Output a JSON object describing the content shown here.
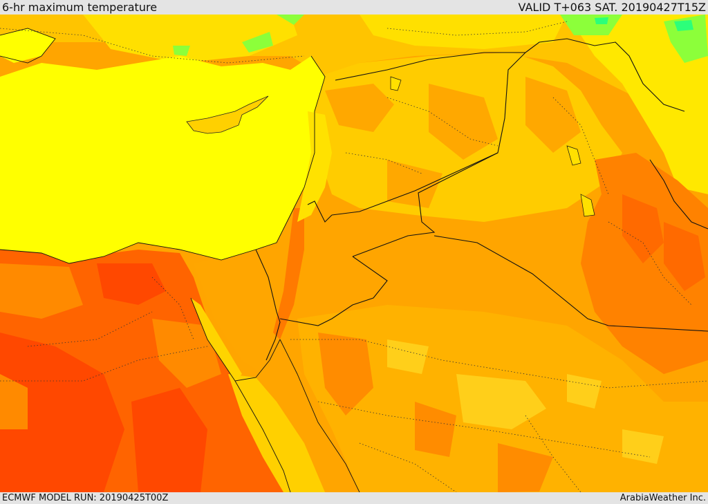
{
  "header": {
    "title": "6-hr maximum temperature",
    "valid": "VALID T+063 SAT. 20190427T15Z"
  },
  "footer": {
    "model_run": "ECMWF MODEL RUN: 20190425T00Z",
    "credit": "ArabiaWeather Inc."
  },
  "map": {
    "variable": "6-hr maximum temperature",
    "palette": {
      "sea": "#ffff00",
      "warm_yellow": "#ffd700",
      "orange_light": "#ffb000",
      "orange": "#ff9f00",
      "orange_dark": "#ff7c00",
      "red_orange": "#ff5a00",
      "green": "#7cff3c",
      "bright_green": "#2cff70"
    }
  }
}
